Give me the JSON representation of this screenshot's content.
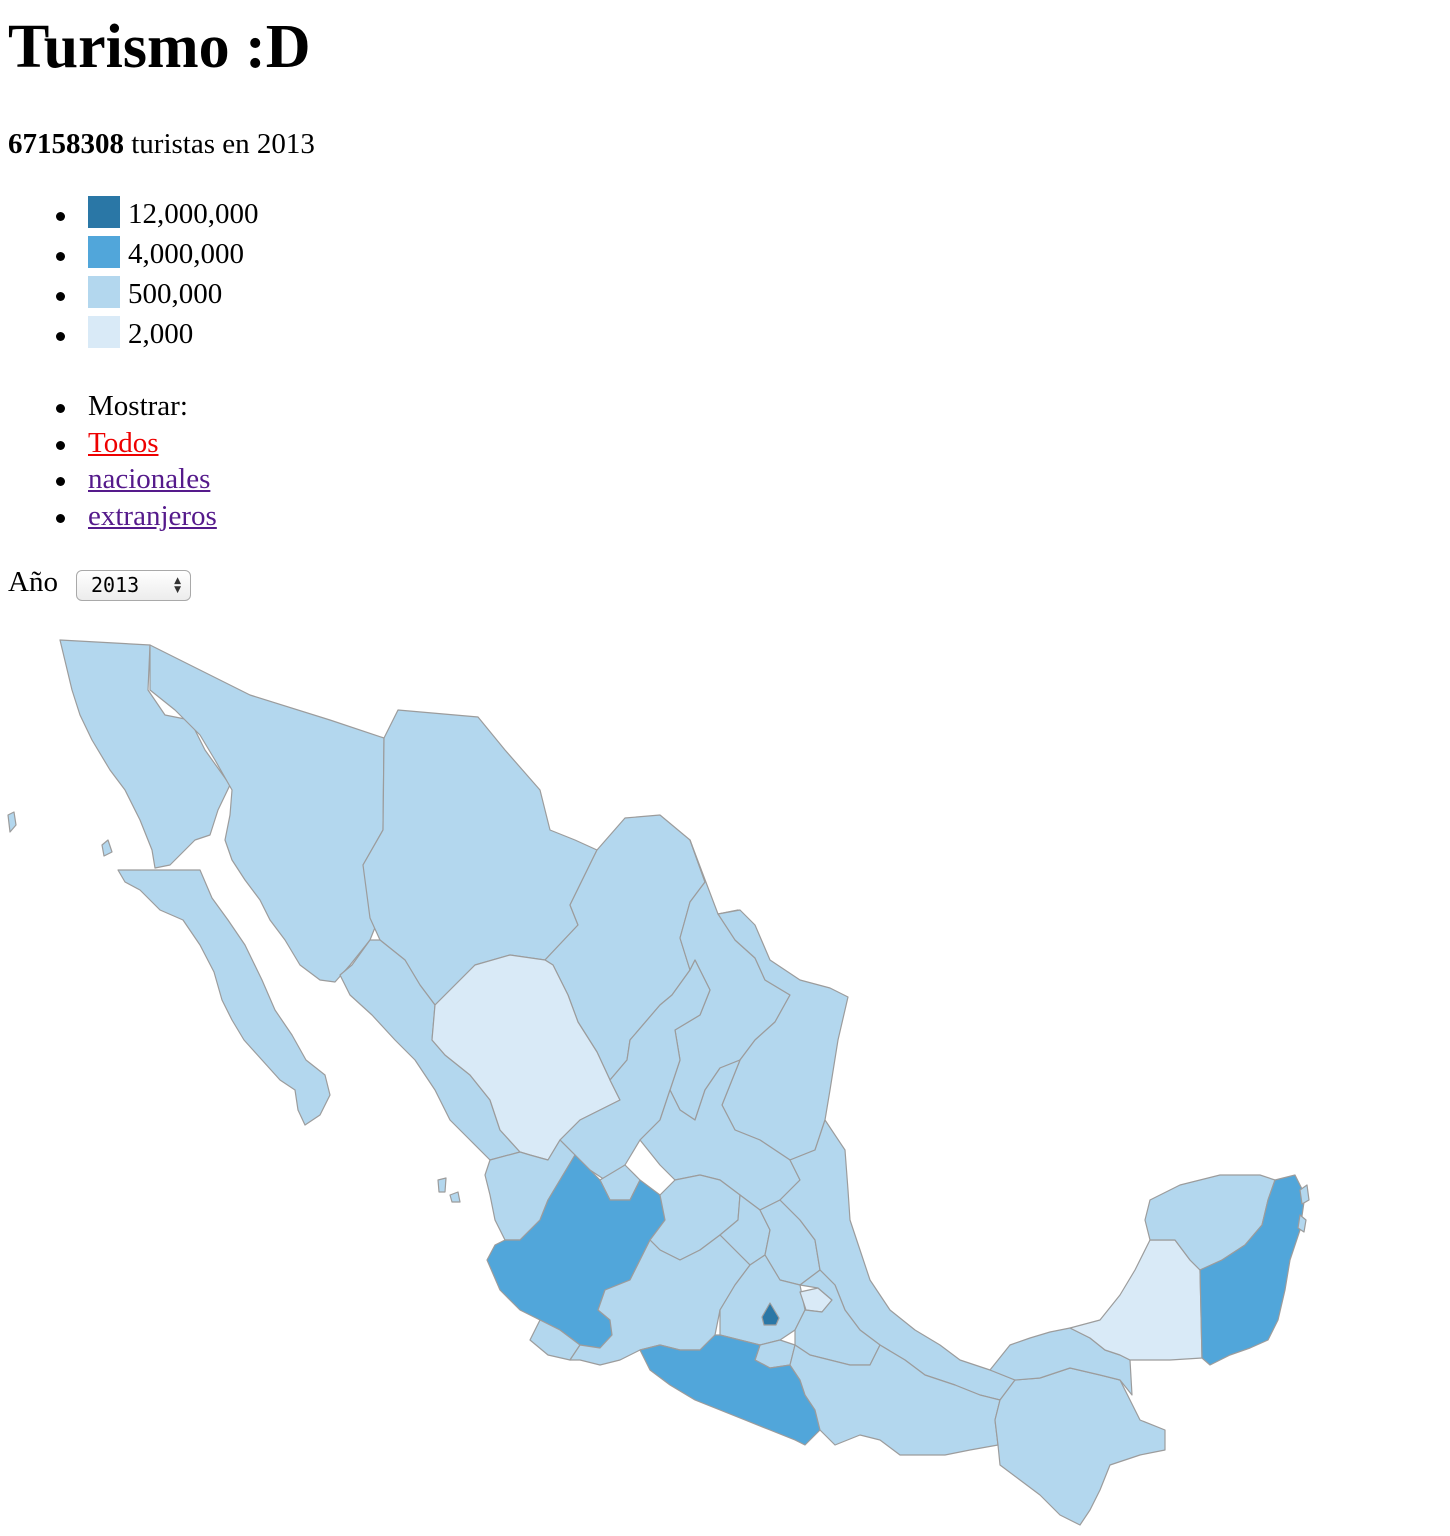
{
  "title": "Turismo :D",
  "summary": {
    "total": "67158308",
    "suffix": "turistas en 2013"
  },
  "legend": {
    "items": [
      {
        "label": "12,000,000",
        "color": "#2a77a6"
      },
      {
        "label": "4,000,000",
        "color": "#51a6da"
      },
      {
        "label": "500,000",
        "color": "#b3d7ee"
      },
      {
        "label": "2,000",
        "color": "#d9eaf7"
      }
    ]
  },
  "filters": {
    "label": "Mostrar:",
    "links": [
      {
        "label": "Todos",
        "color": "#ee0000"
      },
      {
        "label": "nacionales",
        "color": "#551a8b"
      },
      {
        "label": "extranjeros",
        "color": "#551a8b"
      }
    ]
  },
  "year": {
    "label": "Año",
    "selected": "2013"
  },
  "map": {
    "colors": {
      "tier1": "#2a77a6",
      "tier2": "#51a6da",
      "tier3": "#b3d7ee",
      "tier4": "#d9eaf7"
    },
    "states": [
      {
        "name": "Baja California",
        "tier": 3
      },
      {
        "name": "Baja California Sur",
        "tier": 3
      },
      {
        "name": "Sonora",
        "tier": 3
      },
      {
        "name": "Chihuahua",
        "tier": 3
      },
      {
        "name": "Coahuila",
        "tier": 3
      },
      {
        "name": "Nuevo León",
        "tier": 3
      },
      {
        "name": "Tamaulipas",
        "tier": 3
      },
      {
        "name": "Sinaloa",
        "tier": 3
      },
      {
        "name": "Durango",
        "tier": 4
      },
      {
        "name": "Zacatecas",
        "tier": 3
      },
      {
        "name": "San Luis Potosí",
        "tier": 3
      },
      {
        "name": "Nayarit",
        "tier": 3
      },
      {
        "name": "Aguascalientes",
        "tier": 3
      },
      {
        "name": "Jalisco",
        "tier": 2
      },
      {
        "name": "Guanajuato",
        "tier": 3
      },
      {
        "name": "Querétaro",
        "tier": 3
      },
      {
        "name": "Hidalgo",
        "tier": 3
      },
      {
        "name": "Veracruz",
        "tier": 3
      },
      {
        "name": "Colima",
        "tier": 3
      },
      {
        "name": "Michoacán",
        "tier": 3
      },
      {
        "name": "México",
        "tier": 3
      },
      {
        "name": "Ciudad de México",
        "tier": 1
      },
      {
        "name": "Tlaxcala",
        "tier": 4
      },
      {
        "name": "Puebla",
        "tier": 3
      },
      {
        "name": "Morelos",
        "tier": 3
      },
      {
        "name": "Guerrero",
        "tier": 2
      },
      {
        "name": "Oaxaca",
        "tier": 3
      },
      {
        "name": "Chiapas",
        "tier": 3
      },
      {
        "name": "Tabasco",
        "tier": 3
      },
      {
        "name": "Campeche",
        "tier": 4
      },
      {
        "name": "Yucatán",
        "tier": 3
      },
      {
        "name": "Quintana Roo",
        "tier": 2
      }
    ]
  }
}
